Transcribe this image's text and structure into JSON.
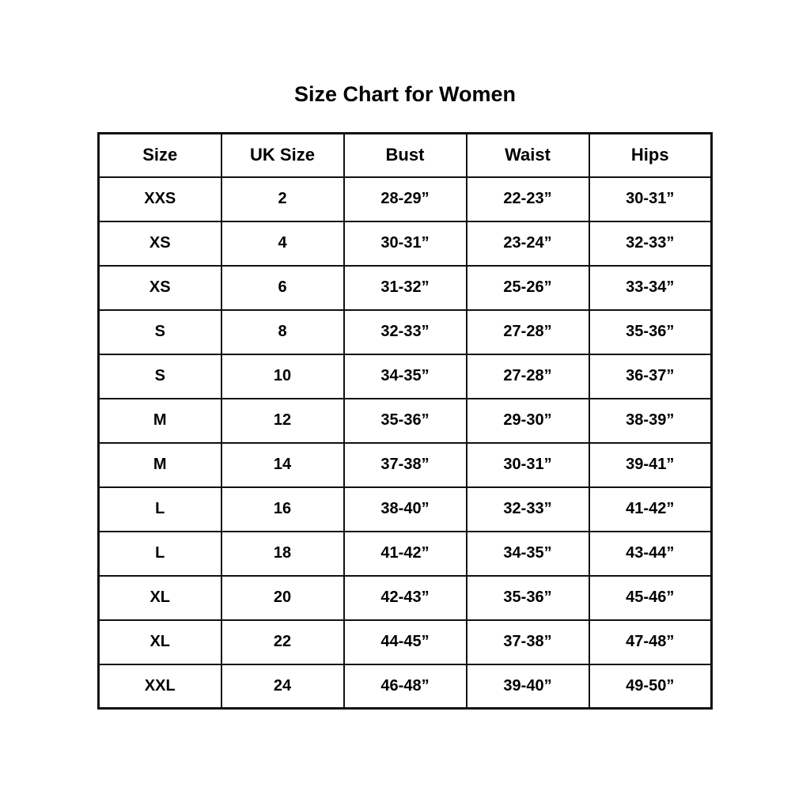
{
  "page": {
    "title": "Size Chart for Women"
  },
  "colors": {
    "background": "#ffffff",
    "text": "#000000",
    "border": "#111111"
  },
  "chart_data": {
    "type": "table",
    "title": "Size Chart for Women",
    "columns": [
      "Size",
      "UK Size",
      "Bust",
      "Waist",
      "Hips"
    ],
    "rows": [
      [
        "XXS",
        "2",
        "28-29”",
        "22-23”",
        "30-31”"
      ],
      [
        "XS",
        "4",
        "30-31”",
        "23-24”",
        "32-33”"
      ],
      [
        "XS",
        "6",
        "31-32”",
        "25-26”",
        "33-34”"
      ],
      [
        "S",
        "8",
        "32-33”",
        "27-28”",
        "35-36”"
      ],
      [
        "S",
        "10",
        "34-35”",
        "27-28”",
        "36-37”"
      ],
      [
        "M",
        "12",
        "35-36”",
        "29-30”",
        "38-39”"
      ],
      [
        "M",
        "14",
        "37-38”",
        "30-31”",
        "39-41”"
      ],
      [
        "L",
        "16",
        "38-40”",
        "32-33”",
        "41-42”"
      ],
      [
        "L",
        "18",
        "41-42”",
        "34-35”",
        "43-44”"
      ],
      [
        "XL",
        "20",
        "42-43”",
        "35-36”",
        "45-46”"
      ],
      [
        "XL",
        "22",
        "44-45”",
        "37-38”",
        "47-48”"
      ],
      [
        "XXL",
        "24",
        "46-48”",
        "39-40”",
        "49-50”"
      ]
    ]
  }
}
